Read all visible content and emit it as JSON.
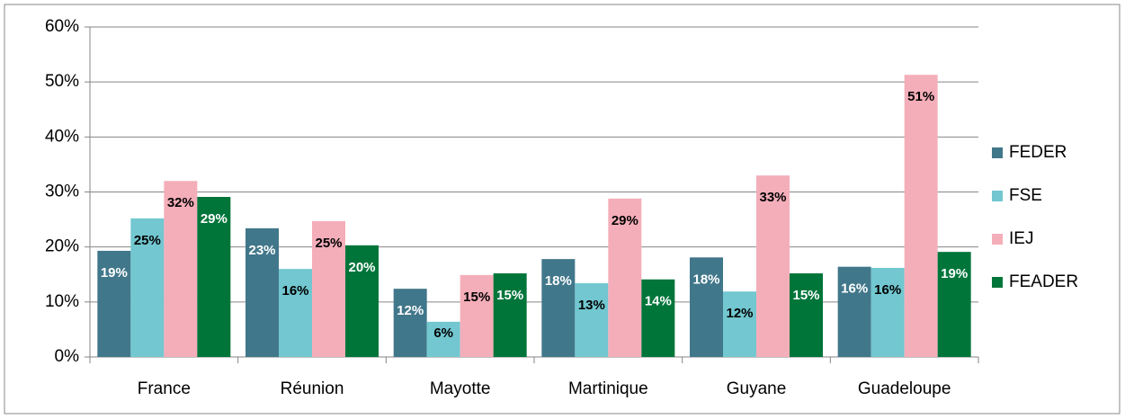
{
  "chart_data": {
    "type": "bar",
    "categories": [
      "France",
      "Réunion",
      "Mayotte",
      "Martinique",
      "Guyane",
      "Guadeloupe"
    ],
    "series": [
      {
        "name": "FEDER",
        "color": "#41778a",
        "values": [
          19.3,
          23.4,
          12.4,
          17.8,
          18.1,
          16.4
        ],
        "value_labels": [
          "19%",
          "23%",
          "12%",
          "18%",
          "18%",
          "16%"
        ]
      },
      {
        "name": "FSE",
        "color": "#72c7d0",
        "values": [
          25.2,
          16.0,
          6.4,
          13.4,
          11.9,
          16.2
        ],
        "value_labels": [
          "25%",
          "16%",
          "6%",
          "13%",
          "12%",
          "16%"
        ]
      },
      {
        "name": "IEJ",
        "color": "#f4aeb9",
        "values": [
          32.0,
          24.7,
          14.9,
          28.8,
          33.0,
          51.3
        ],
        "value_labels": [
          "32%",
          "25%",
          "15%",
          "29%",
          "33%",
          "51%"
        ]
      },
      {
        "name": "FEADER",
        "color": "#00753a",
        "values": [
          29.1,
          20.3,
          15.2,
          14.1,
          15.2,
          19.1
        ],
        "value_labels": [
          "29%",
          "20%",
          "15%",
          "14%",
          "15%",
          "19%"
        ]
      }
    ],
    "ylim": [
      0,
      60
    ],
    "yticks": [
      {
        "value": 0,
        "label": "0%"
      },
      {
        "value": 10,
        "label": "10%"
      },
      {
        "value": 20,
        "label": "20%"
      },
      {
        "value": 30,
        "label": "30%"
      },
      {
        "value": 40,
        "label": "40%"
      },
      {
        "value": 50,
        "label": "50%"
      },
      {
        "value": 60,
        "label": "60%"
      }
    ],
    "grid": true,
    "legend": "right"
  }
}
